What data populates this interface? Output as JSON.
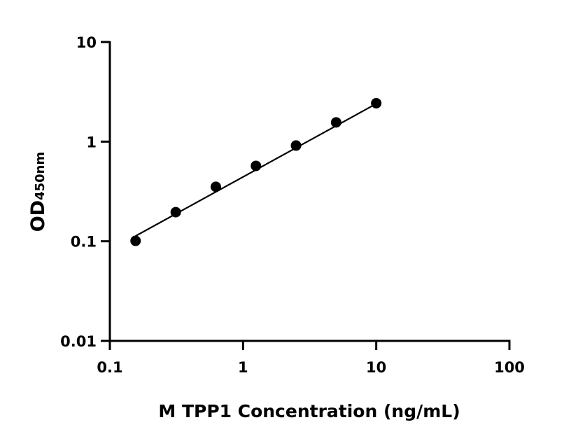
{
  "chart_data": {
    "type": "scatter",
    "title": "",
    "xlabel": "M TPP1 Concentration (ng/mL)",
    "ylabel": "OD",
    "ylabel_subscript": "450nm",
    "x_scale": "log",
    "y_scale": "log",
    "xlim": [
      0.1,
      100
    ],
    "ylim": [
      0.01,
      10
    ],
    "x_ticks": [
      0.1,
      1,
      10,
      100
    ],
    "x_tick_labels": [
      "0.1",
      "1",
      "10",
      "100"
    ],
    "y_ticks": [
      0.01,
      0.1,
      1,
      10
    ],
    "y_tick_labels": [
      "0.01",
      "0.1",
      "1",
      "10"
    ],
    "grid": false,
    "legend": "none",
    "marker_color": "#000000",
    "series": [
      {
        "x": [
          0.156,
          0.3125,
          0.625,
          1.25,
          2.5,
          5,
          10
        ],
        "y": [
          0.101,
          0.196,
          0.352,
          0.571,
          0.914,
          1.56,
          2.43
        ]
      }
    ],
    "fit_line": {
      "x": [
        0.156,
        10
      ],
      "y": [
        0.113,
        2.4
      ]
    }
  }
}
